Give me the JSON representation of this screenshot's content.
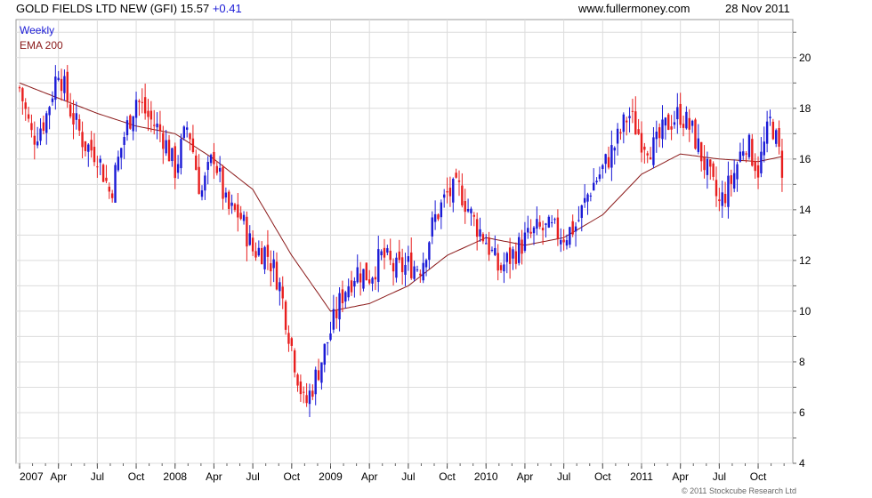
{
  "header": {
    "title": "GOLD FIELDS LTD NEW (GFI) 15.57",
    "change": "+0.41",
    "source": "www.fullermoney.com",
    "date": "28 Nov 2011"
  },
  "copyright": "© 2011 Stockcube Research Ltd",
  "chart_data": {
    "type": "candlestick",
    "legend": [
      "Weekly",
      "EMA 200"
    ],
    "legend_placement": "top-left",
    "grid": true,
    "ylim": [
      4,
      21.5
    ],
    "y_axis_position": "right",
    "y_ticks": [
      "4",
      "6",
      "8",
      "10",
      "12",
      "14",
      "16",
      "18",
      "20"
    ],
    "x_ticks": [
      "2007",
      "Apr",
      "Jul",
      "Oct",
      "2008",
      "Apr",
      "Jul",
      "Oct",
      "2009",
      "Apr",
      "Jul",
      "Oct",
      "2010",
      "Apr",
      "Jul",
      "Oct",
      "2011",
      "Apr",
      "Jul",
      "Oct"
    ],
    "x_range": [
      "2007-01",
      "2011-11"
    ],
    "colors": {
      "up": "#1a1ad6",
      "down": "#e81e1e",
      "ema": "#8b1a1a"
    },
    "price_path": [
      [
        "2007-01",
        18.8
      ],
      [
        "2007-02",
        16.8
      ],
      [
        "2007-03",
        17.6
      ],
      [
        "2007-04",
        19.6
      ],
      [
        "2007-05",
        17.8
      ],
      [
        "2007-06",
        16.6
      ],
      [
        "2007-07",
        16.2
      ],
      [
        "2007-08",
        14.6
      ],
      [
        "2007-09",
        16.8
      ],
      [
        "2007-10",
        18.4
      ],
      [
        "2007-11",
        17.6
      ],
      [
        "2007-12",
        17.0
      ],
      [
        "2008-01",
        15.6
      ],
      [
        "2008-02",
        17.4
      ],
      [
        "2008-03",
        14.6
      ],
      [
        "2008-04",
        16.2
      ],
      [
        "2008-05",
        14.0
      ],
      [
        "2008-06",
        13.8
      ],
      [
        "2008-07",
        12.4
      ],
      [
        "2008-08",
        12.4
      ],
      [
        "2008-09",
        11.2
      ],
      [
        "2008-10",
        8.6
      ],
      [
        "2008-11",
        6.2
      ],
      [
        "2008-12",
        7.6
      ],
      [
        "2009-01",
        9.2
      ],
      [
        "2009-02",
        10.8
      ],
      [
        "2009-03",
        11.6
      ],
      [
        "2009-04",
        11.4
      ],
      [
        "2009-05",
        12.2
      ],
      [
        "2009-06",
        11.6
      ],
      [
        "2009-07",
        11.8
      ],
      [
        "2009-08",
        11.8
      ],
      [
        "2009-09",
        13.6
      ],
      [
        "2009-10",
        14.6
      ],
      [
        "2009-11",
        14.8
      ],
      [
        "2009-12",
        13.6
      ],
      [
        "2010-01",
        12.8
      ],
      [
        "2010-02",
        11.6
      ],
      [
        "2010-03",
        12.2
      ],
      [
        "2010-04",
        12.8
      ],
      [
        "2010-05",
        13.2
      ],
      [
        "2010-06",
        13.2
      ],
      [
        "2010-07",
        13.0
      ],
      [
        "2010-08",
        13.4
      ],
      [
        "2010-09",
        14.8
      ],
      [
        "2010-10",
        15.6
      ],
      [
        "2010-11",
        16.6
      ],
      [
        "2010-12",
        17.8
      ],
      [
        "2011-01",
        16.8
      ],
      [
        "2011-02",
        16.4
      ],
      [
        "2011-03",
        17.4
      ],
      [
        "2011-04",
        17.8
      ],
      [
        "2011-05",
        17.0
      ],
      [
        "2011-06",
        15.6
      ],
      [
        "2011-07",
        14.2
      ],
      [
        "2011-08",
        15.2
      ],
      [
        "2011-09",
        16.8
      ],
      [
        "2011-10",
        15.6
      ],
      [
        "2011-11",
        17.6
      ],
      [
        "2011-11-28",
        15.57
      ]
    ],
    "ema_path": [
      [
        "2007-01",
        19.0
      ],
      [
        "2007-04",
        18.4
      ],
      [
        "2007-07",
        17.8
      ],
      [
        "2007-10",
        17.3
      ],
      [
        "2008-01",
        17.0
      ],
      [
        "2008-04",
        16.0
      ],
      [
        "2008-07",
        14.8
      ],
      [
        "2008-10",
        12.2
      ],
      [
        "2009-01",
        10.0
      ],
      [
        "2009-04",
        10.3
      ],
      [
        "2009-07",
        11.0
      ],
      [
        "2009-10",
        12.2
      ],
      [
        "2010-01",
        12.9
      ],
      [
        "2010-04",
        12.6
      ],
      [
        "2010-07",
        12.9
      ],
      [
        "2010-10",
        13.8
      ],
      [
        "2011-01",
        15.4
      ],
      [
        "2011-04",
        16.2
      ],
      [
        "2011-07",
        16.0
      ],
      [
        "2011-10",
        15.9
      ],
      [
        "2011-11-28",
        16.1
      ]
    ]
  }
}
